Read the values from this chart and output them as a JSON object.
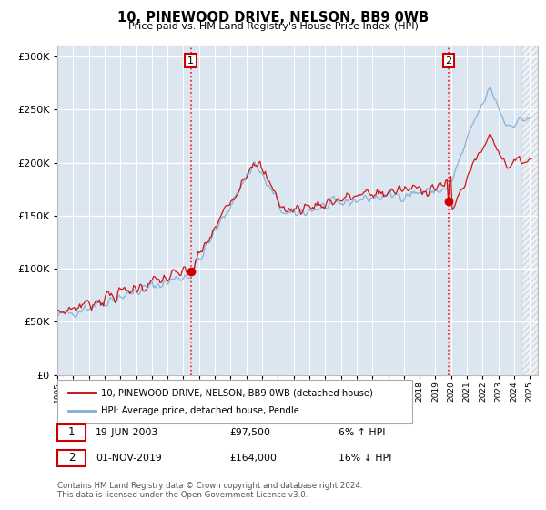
{
  "title": "10, PINEWOOD DRIVE, NELSON, BB9 0WB",
  "subtitle": "Price paid vs. HM Land Registry's House Price Index (HPI)",
  "hpi_label": "HPI: Average price, detached house, Pendle",
  "property_label": "10, PINEWOOD DRIVE, NELSON, BB9 0WB (detached house)",
  "sale1_date": "19-JUN-2003",
  "sale1_price": 97500,
  "sale1_hpi_text": "6% ↑ HPI",
  "sale2_date": "01-NOV-2019",
  "sale2_price": 164000,
  "sale2_hpi_text": "16% ↓ HPI",
  "footer": "Contains HM Land Registry data © Crown copyright and database right 2024.\nThis data is licensed under the Open Government Licence v3.0.",
  "ylim": [
    0,
    310000
  ],
  "yticks": [
    0,
    50000,
    100000,
    150000,
    200000,
    250000,
    300000
  ],
  "plot_bg": "#dce6f1",
  "hpi_color": "#7eadd4",
  "property_color": "#cc0000",
  "sale1_x": 2003.47,
  "sale2_x": 2019.84,
  "xlim_left": 1995,
  "xlim_right": 2025.5
}
